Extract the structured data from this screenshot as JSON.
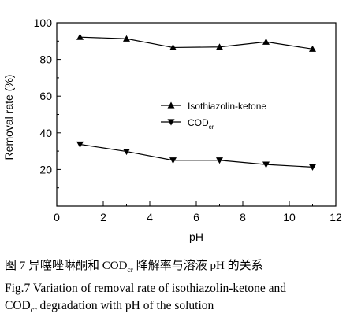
{
  "chart_data": {
    "type": "line",
    "x": [
      1,
      3,
      5,
      7,
      9,
      11
    ],
    "series": [
      {
        "name": "Isothiazolin-ketone",
        "marker": "triangle-up",
        "color": "#000000",
        "values": [
          92.2,
          91.3,
          86.5,
          86.8,
          89.6,
          85.7
        ]
      },
      {
        "name_main": "COD",
        "name_sub": "cr",
        "marker": "triangle-down",
        "color": "#000000",
        "values": [
          33.7,
          29.8,
          25.0,
          25.0,
          22.7,
          21.3
        ]
      }
    ],
    "xlabel": "pH",
    "ylabel": "Removal rate (%)",
    "xlim": [
      0,
      12
    ],
    "ylim": [
      0,
      100
    ],
    "xticks": [
      0,
      2,
      4,
      6,
      8,
      10,
      12
    ],
    "yticks": [
      20,
      40,
      60,
      80,
      100
    ],
    "grid": false,
    "legend": "center-right"
  },
  "caption": {
    "cn_before": "图 7  异噻唑啉酮和 COD",
    "cn_sub": "cr",
    "cn_after": " 降解率与溶液 pH 的关系",
    "en1": "Fig.7 Variation of removal rate of isothiazolin-ketone and",
    "en2_main": "COD",
    "en2_sub": "cr",
    "en2_after": " degradation with pH of the solution"
  }
}
